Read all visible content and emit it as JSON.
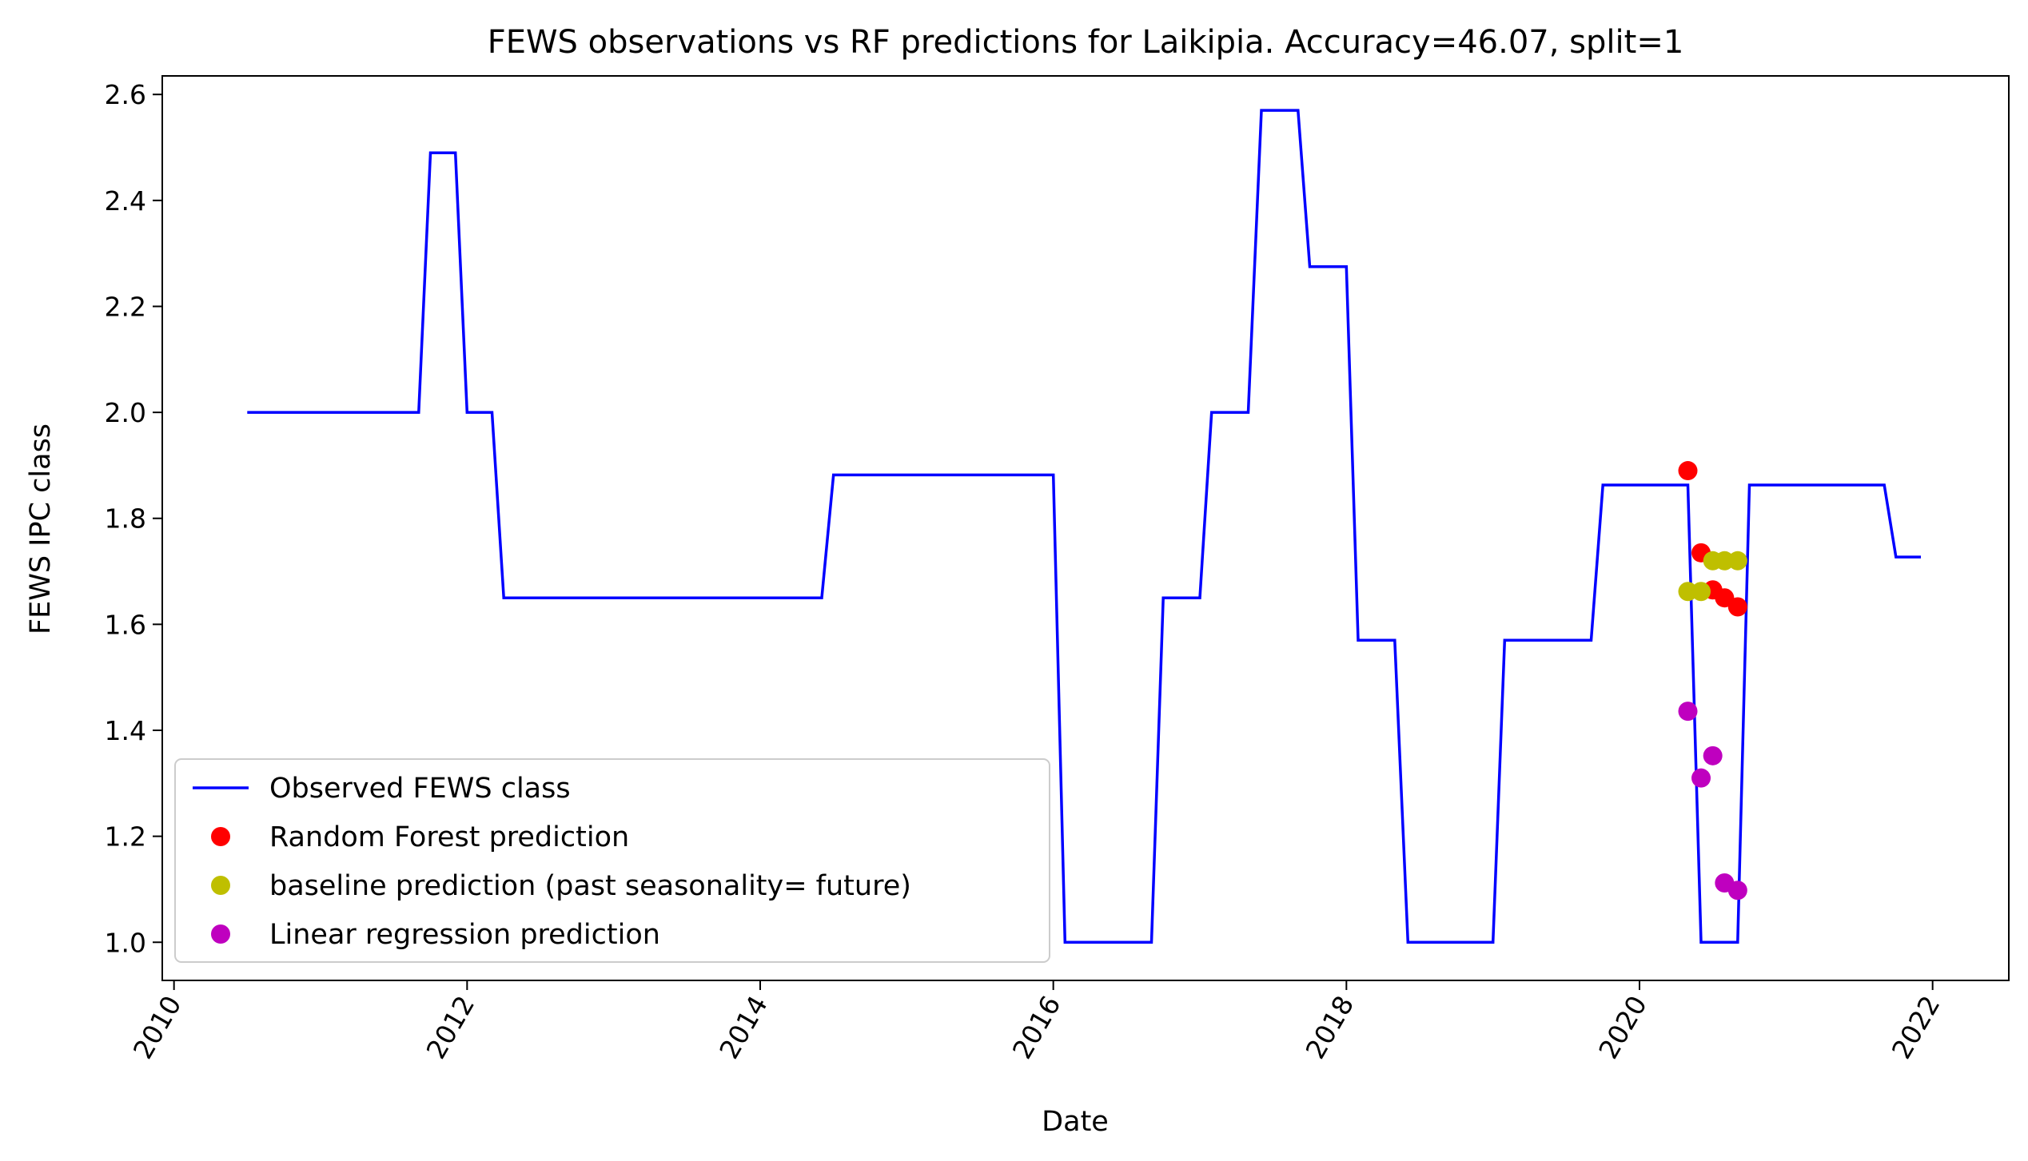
{
  "chart_data": {
    "type": "line",
    "title": "FEWS observations vs RF predictions for Laikipia. Accuracy=46.07, split=1",
    "xlabel": "Date",
    "ylabel": "FEWS IPC class",
    "xlim": [
      2009.92,
      2022.52
    ],
    "ylim": [
      0.928,
      2.635
    ],
    "x_ticks": [
      2010,
      2012,
      2014,
      2016,
      2018,
      2020,
      2022
    ],
    "x_tick_labels": [
      "2010",
      "2012",
      "2014",
      "2016",
      "2018",
      "2020",
      "2022"
    ],
    "y_ticks": [
      1.0,
      1.2,
      1.4,
      1.6,
      1.8,
      2.0,
      2.2,
      2.4,
      2.6
    ],
    "y_tick_labels": [
      "1.0",
      "1.2",
      "1.4",
      "1.6",
      "1.8",
      "2.0",
      "2.2",
      "2.4",
      "2.6"
    ],
    "grid": false,
    "legend_position": "lower-left",
    "series": [
      {
        "name": "Observed FEWS class",
        "kind": "line",
        "color": "#0000ff",
        "points": [
          [
            2010.5,
            2.0
          ],
          [
            2011.67,
            2.0
          ],
          [
            2011.75,
            2.49
          ],
          [
            2011.92,
            2.49
          ],
          [
            2012.0,
            2.0
          ],
          [
            2012.17,
            2.0
          ],
          [
            2012.25,
            1.65
          ],
          [
            2014.42,
            1.65
          ],
          [
            2014.5,
            1.882
          ],
          [
            2016.0,
            1.882
          ],
          [
            2016.08,
            1.0
          ],
          [
            2016.67,
            1.0
          ],
          [
            2016.75,
            1.65
          ],
          [
            2017.0,
            1.65
          ],
          [
            2017.08,
            2.0
          ],
          [
            2017.33,
            2.0
          ],
          [
            2017.42,
            2.57
          ],
          [
            2017.67,
            2.57
          ],
          [
            2017.75,
            2.275
          ],
          [
            2018.0,
            2.275
          ],
          [
            2018.08,
            1.57
          ],
          [
            2018.33,
            1.57
          ],
          [
            2018.42,
            1.0
          ],
          [
            2019.0,
            1.0
          ],
          [
            2019.08,
            1.57
          ],
          [
            2019.67,
            1.57
          ],
          [
            2019.75,
            1.863
          ],
          [
            2020.33,
            1.863
          ],
          [
            2020.42,
            1.0
          ],
          [
            2020.67,
            1.0
          ],
          [
            2020.75,
            1.863
          ],
          [
            2021.67,
            1.863
          ],
          [
            2021.75,
            1.727
          ],
          [
            2021.92,
            1.727
          ]
        ]
      },
      {
        "name": "Random Forest prediction",
        "kind": "points",
        "color": "#ff0000",
        "points": [
          [
            2020.33,
            1.89
          ],
          [
            2020.42,
            1.735
          ],
          [
            2020.5,
            1.665
          ],
          [
            2020.58,
            1.65
          ],
          [
            2020.67,
            1.633
          ]
        ]
      },
      {
        "name": "baseline prediction (past seasonality= future)",
        "kind": "points",
        "color": "#bfbf00",
        "points": [
          [
            2020.33,
            1.662
          ],
          [
            2020.42,
            1.662
          ],
          [
            2020.5,
            1.72
          ],
          [
            2020.58,
            1.72
          ],
          [
            2020.67,
            1.72
          ]
        ]
      },
      {
        "name": "Linear regression prediction",
        "kind": "points",
        "color": "#bf00bf",
        "points": [
          [
            2020.33,
            1.436
          ],
          [
            2020.42,
            1.31
          ],
          [
            2020.5,
            1.352
          ],
          [
            2020.58,
            1.112
          ],
          [
            2020.67,
            1.098
          ]
        ]
      }
    ]
  }
}
